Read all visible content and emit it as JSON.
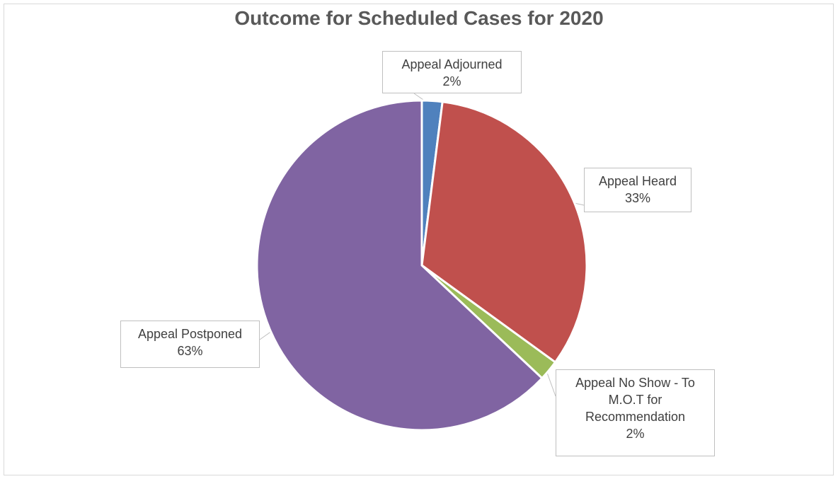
{
  "chart_data": {
    "type": "pie",
    "title": "Outcome for Scheduled Cases for 2020",
    "categories": [
      "Appeal Adjourned",
      "Appeal Heard",
      "Appeal No Show - To M.O.T for Recommendation",
      "Appeal Postponed"
    ],
    "values": [
      2,
      33,
      2,
      63
    ],
    "value_labels": [
      "2%",
      "33%",
      "2%",
      "63%"
    ],
    "colors": [
      "#4f81bd",
      "#c0504d",
      "#9bbb59",
      "#8064a2"
    ]
  }
}
